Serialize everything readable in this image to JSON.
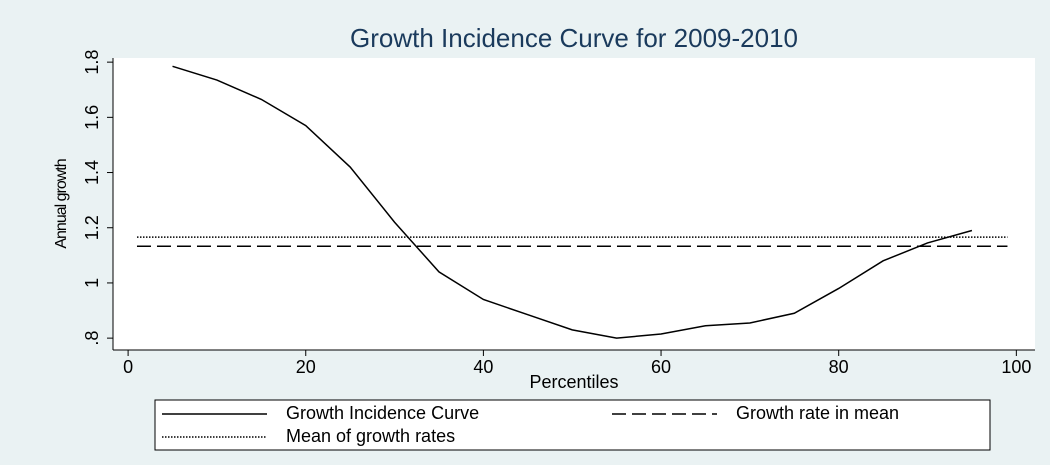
{
  "chart_data": {
    "type": "line",
    "title": "Growth Incidence Curve for 2009-2010",
    "x_label": "Percentiles",
    "y_label": "Annual growth",
    "xlim": [
      -1.7,
      102.1
    ],
    "ylim": [
      0.757,
      1.815
    ],
    "xticks": [
      0,
      20,
      40,
      60,
      80,
      100
    ],
    "yticks": [
      {
        "value": 0.8,
        "label": ".8"
      },
      1,
      1.2,
      1.4,
      1.6,
      1.8
    ],
    "series": [
      {
        "name": "Growth Incidence Curve",
        "color": "#000000",
        "dash": "solid",
        "x": [
          5,
          10,
          15,
          20,
          25,
          30,
          35,
          40,
          45,
          50,
          55,
          60,
          65,
          70,
          75,
          80,
          85,
          90,
          95
        ],
        "values": [
          1.785,
          1.735,
          1.665,
          1.57,
          1.42,
          1.22,
          1.04,
          0.94,
          0.885,
          0.83,
          0.8,
          0.815,
          0.845,
          0.855,
          0.89,
          0.98,
          1.08,
          1.145,
          1.19
        ]
      },
      {
        "name": "Growth rate in mean",
        "color": "#000000",
        "dash": "dashed",
        "x": [
          1,
          99
        ],
        "values": [
          1.133,
          1.133
        ]
      },
      {
        "name": "Mean of growth rates",
        "color": "#000000",
        "dash": "dotted",
        "x": [
          1,
          99
        ],
        "values": [
          1.166,
          1.166
        ]
      }
    ]
  }
}
